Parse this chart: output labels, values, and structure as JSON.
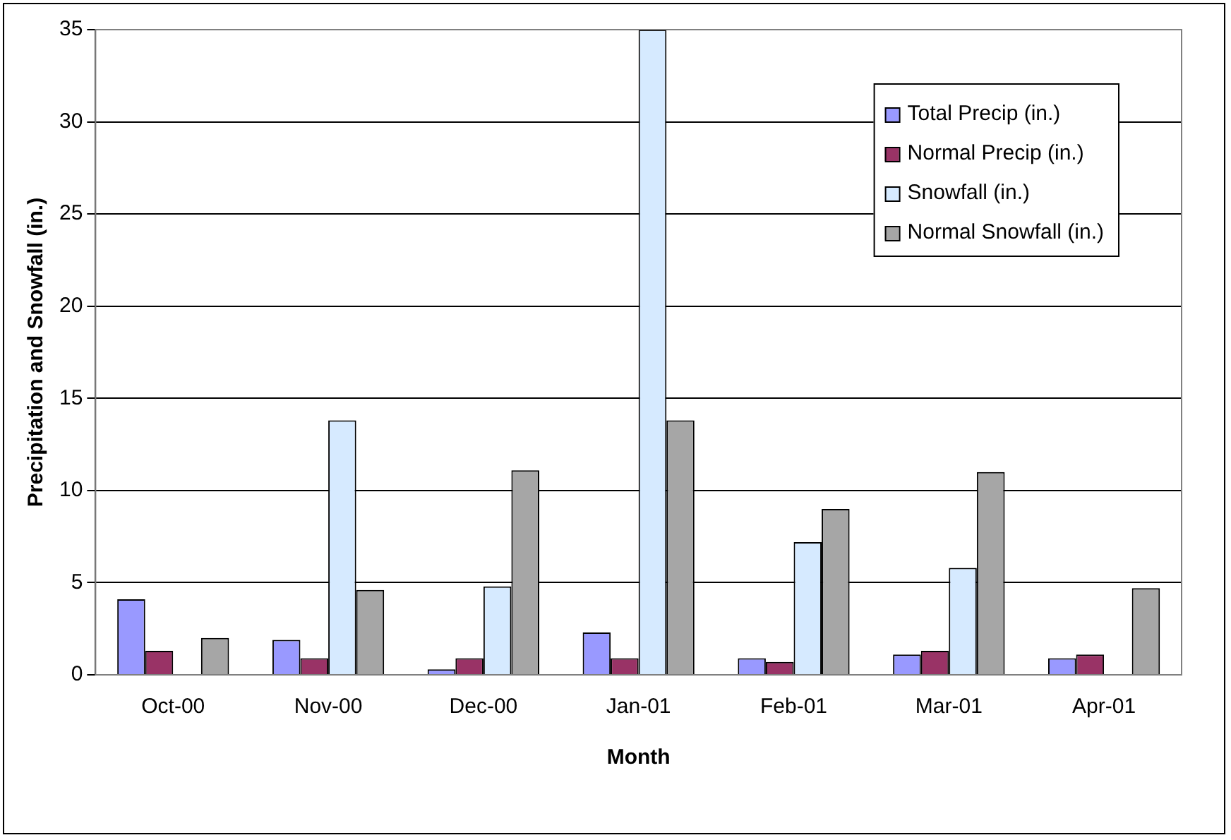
{
  "chart_data": {
    "type": "bar",
    "xlabel": "Month",
    "ylabel": "Precipitation and Snowfall (in.)",
    "categories": [
      "Oct-00",
      "Nov-00",
      "Dec-00",
      "Jan-01",
      "Feb-01",
      "Mar-01",
      "Apr-01"
    ],
    "series": [
      {
        "name": "Total Precip (in.)",
        "color": "#9999ff",
        "values": [
          4.1,
          1.9,
          0.3,
          2.3,
          0.9,
          1.1,
          0.9
        ]
      },
      {
        "name": "Normal Precip (in.)",
        "color": "#993366",
        "values": [
          1.3,
          0.9,
          0.9,
          0.9,
          0.7,
          1.3,
          1.1
        ]
      },
      {
        "name": "Snowfall (in.)",
        "color": "#d6eaff",
        "values": [
          0,
          13.8,
          4.8,
          35,
          7.2,
          5.8,
          0
        ]
      },
      {
        "name": "Normal Snowfall (in.)",
        "color": "#a6a6a6",
        "values": [
          2.0,
          4.6,
          11.1,
          13.8,
          9.0,
          11.0,
          4.7
        ]
      }
    ],
    "ylim": [
      0,
      35
    ],
    "yticks": [
      0,
      5,
      10,
      15,
      20,
      25,
      30,
      35
    ],
    "grid": "y",
    "legend": "top right"
  }
}
